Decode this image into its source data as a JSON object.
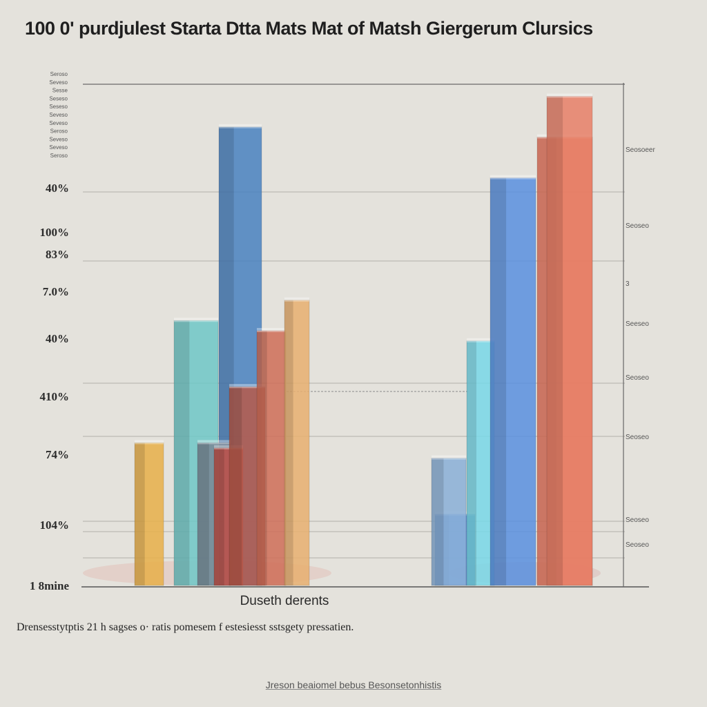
{
  "chart_data": {
    "type": "bar",
    "title": "100 0' purdjulest Starta Dtta Mats Mat of Matsh Giergerum Clursics",
    "xlabel": "Duseth derents",
    "ylabel": "",
    "y_tick_labels_left": [
      "40%",
      "100%",
      "83%",
      "7.0%",
      "40%",
      "410%",
      "74%",
      "104%",
      "1 8mine"
    ],
    "y_tick_labels_left_small": [
      "Seroso",
      "Seveso",
      "Sesse",
      "Seseso",
      "Seseso",
      "Seveso",
      "Seveso",
      "Seroso",
      "Seveso",
      "Seveso",
      "Seroso"
    ],
    "y_tick_labels_right": [
      "Seosoeer",
      "Seoseo",
      "3",
      "Seeseo",
      "Seoseo",
      "Seoseo",
      "Seoseo",
      "Seoseo"
    ],
    "ylim": [
      0,
      100
    ],
    "grid": true,
    "groups": [
      {
        "name": "left-group",
        "bars": [
          {
            "color": "#e8b04a",
            "value": 28
          },
          {
            "color": "#6fc8c8",
            "value": 52
          },
          {
            "color": "#4a82c0",
            "value": 90
          },
          {
            "color": "#7a8896",
            "value": 28
          },
          {
            "color": "#c05048",
            "value": 27
          },
          {
            "color": "#b85a4a",
            "value": 39
          },
          {
            "color": "#d06e58",
            "value": 50
          },
          {
            "color": "#e8b070",
            "value": 56
          }
        ]
      },
      {
        "name": "right-group",
        "bars": [
          {
            "color": "#5a8ad8",
            "value": 14
          },
          {
            "color": "#8ab0d8",
            "value": 25
          },
          {
            "color": "#78d8e8",
            "value": 48
          },
          {
            "color": "#5a90e0",
            "value": 80
          },
          {
            "color": "#e87860",
            "value": 88
          },
          {
            "color": "#e88068",
            "value": 96
          }
        ]
      }
    ]
  },
  "caption": "Drensesstytptis 21 h sagses o· ratis pomesem f estesiesst sstsgety pressatien.",
  "footer": "Jreson beaiomel bebus Besonsetonhistis"
}
